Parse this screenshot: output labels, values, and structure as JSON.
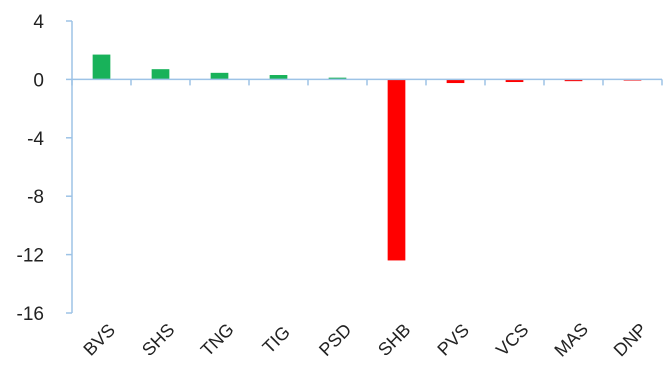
{
  "chart_data": {
    "type": "bar",
    "categories": [
      "BVS",
      "SHS",
      "TNG",
      "TIG",
      "PSD",
      "SHB",
      "PVS",
      "VCS",
      "MAS",
      "DNP"
    ],
    "values": [
      1.7,
      0.7,
      0.45,
      0.3,
      0.12,
      -12.4,
      -0.25,
      -0.18,
      -0.12,
      -0.06
    ],
    "ylim": [
      -16,
      4
    ],
    "yticks": [
      4,
      0,
      -4,
      -8,
      -12,
      -16
    ],
    "title": "",
    "xlabel": "",
    "ylabel": "",
    "legend": "none",
    "grid": false,
    "colors": {
      "positive": "#18b25a",
      "negative": "#ff0000",
      "axis": "#9dc3e6",
      "text": "#222222"
    }
  }
}
